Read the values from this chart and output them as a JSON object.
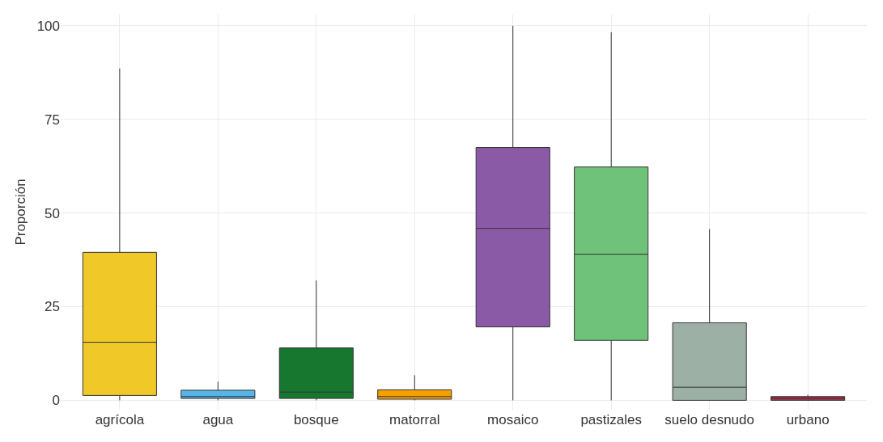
{
  "chart_data": {
    "type": "box",
    "ylabel": "Proporción",
    "categories": [
      "agrícola",
      "agua",
      "bosque",
      "matorral",
      "mosaico",
      "pastizales",
      "suelo desnudo",
      "urbano"
    ],
    "colors": [
      "#f0c929",
      "#56b4e9",
      "#17772f",
      "#f5a000",
      "#8a5aa6",
      "#6fc27a",
      "#9cb0a6",
      "#a8334a"
    ],
    "boxes": [
      {
        "low": 0,
        "q1": 1.3,
        "median": 15.5,
        "q3": 39.5,
        "high": 88.6
      },
      {
        "low": 0,
        "q1": 0.5,
        "median": 1,
        "q3": 2.7,
        "high": 5
      },
      {
        "low": 0,
        "q1": 0.5,
        "median": 2.2,
        "q3": 14,
        "high": 32
      },
      {
        "low": 0,
        "q1": 0.3,
        "median": 1,
        "q3": 2.8,
        "high": 6.7
      },
      {
        "low": 0,
        "q1": 19.6,
        "median": 45.9,
        "q3": 67.5,
        "high": 100
      },
      {
        "low": 0,
        "q1": 16,
        "median": 39,
        "q3": 62.3,
        "high": 98.3
      },
      {
        "low": 0,
        "q1": 0,
        "median": 3.5,
        "q3": 20.7,
        "high": 45.7
      },
      {
        "low": 0,
        "q1": 0,
        "median": 0.5,
        "q3": 1,
        "high": 1.5
      }
    ],
    "ylim": [
      -2.5,
      103
    ],
    "yticks": [
      0,
      25,
      50,
      75,
      100
    ],
    "grid": true,
    "legend": false
  }
}
